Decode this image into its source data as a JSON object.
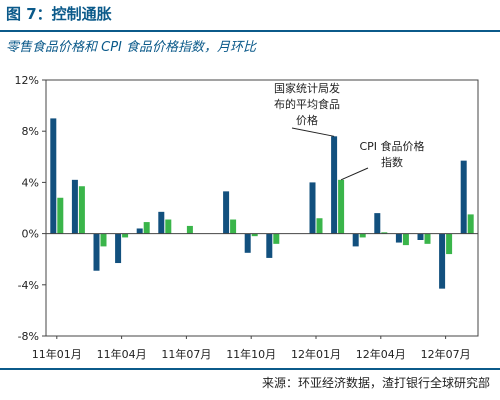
{
  "figure": {
    "title": "图 7：控制通胀",
    "subtitle": "零售食品价格和 CPI 食品价格指数，月环比",
    "source": "来源：环亚经济数据，渣打银行全球研究部",
    "colors": {
      "title": "#0b5a8a",
      "series1": "#12507e",
      "series2": "#3ab54a"
    }
  },
  "chart_data": {
    "type": "bar",
    "ylim": [
      -8,
      12
    ],
    "yticks": [
      -8,
      -4,
      0,
      4,
      8,
      12
    ],
    "ytick_labels": [
      "-8%",
      "-4%",
      "0%",
      "4%",
      "8%",
      "12%"
    ],
    "xtick_labels": [
      "11年01月",
      "11年04月",
      "11年07月",
      "11年10月",
      "12年01月",
      "12年04月",
      "12年07月"
    ],
    "xtick_every": 3,
    "categories": [
      "11年01月",
      "11年02月",
      "11年03月",
      "11年04月",
      "11年05月",
      "11年06月",
      "11年07月",
      "11年08月",
      "11年09月",
      "11年10月",
      "11年11月",
      "11年12月",
      "12年01月",
      "12年02月",
      "12年03月",
      "12年04月",
      "12年05月",
      "12年06月",
      "12年07月",
      "12年08月"
    ],
    "series": [
      {
        "name": "国家统计局发布的平均食品价格",
        "values": [
          9.0,
          4.2,
          -2.9,
          -2.3,
          0.4,
          1.7,
          0.0,
          0.0,
          3.3,
          -1.5,
          -1.9,
          0.0,
          4.0,
          7.6,
          -1.0,
          1.6,
          -0.7,
          -0.5,
          -4.3,
          5.7
        ]
      },
      {
        "name": "CPI 食品价格指数",
        "values": [
          2.8,
          3.7,
          -1.0,
          -0.3,
          0.9,
          1.1,
          0.6,
          0.0,
          1.1,
          -0.2,
          -0.8,
          0.0,
          1.2,
          4.2,
          -0.3,
          0.1,
          -0.9,
          -0.8,
          -1.6,
          1.5
        ]
      }
    ],
    "annotations": [
      {
        "text_lines": [
          "国家统计局发",
          "布的平均食品",
          "价格"
        ],
        "target_series": 0
      },
      {
        "text_lines": [
          "CPI 食品价格",
          "指数"
        ],
        "target_series": 1
      }
    ],
    "grid": false,
    "legend": "none"
  }
}
